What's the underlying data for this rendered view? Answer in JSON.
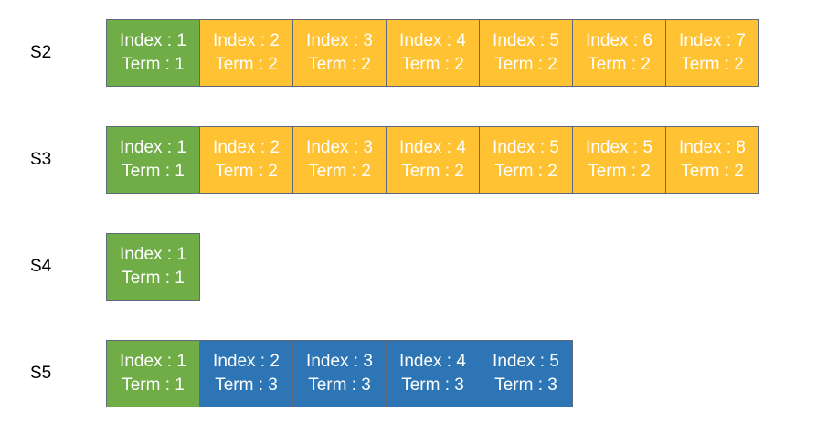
{
  "servers": [
    {
      "label": "S2",
      "entries": [
        {
          "index": "Index : 1",
          "term": "Term : 1",
          "color": "#70ad47"
        },
        {
          "index": "Index : 2",
          "term": "Term : 2",
          "color": "#ffc233"
        },
        {
          "index": "Index : 3",
          "term": "Term : 2",
          "color": "#ffc233"
        },
        {
          "index": "Index : 4",
          "term": "Term : 2",
          "color": "#ffc233"
        },
        {
          "index": "Index : 5",
          "term": "Term : 2",
          "color": "#ffc233"
        },
        {
          "index": "Index : 6",
          "term": "Term : 2",
          "color": "#ffc233"
        },
        {
          "index": "Index : 7",
          "term": "Term : 2",
          "color": "#ffc233"
        }
      ]
    },
    {
      "label": "S3",
      "entries": [
        {
          "index": "Index : 1",
          "term": "Term : 1",
          "color": "#70ad47"
        },
        {
          "index": "Index : 2",
          "term": "Term : 2",
          "color": "#ffc233"
        },
        {
          "index": "Index : 3",
          "term": "Term : 2",
          "color": "#ffc233"
        },
        {
          "index": "Index : 4",
          "term": "Term : 2",
          "color": "#ffc233"
        },
        {
          "index": "Index : 5",
          "term": "Term : 2",
          "color": "#ffc233"
        },
        {
          "index": "Index : 5",
          "term": "Term : 2",
          "color": "#ffc233"
        },
        {
          "index": "Index : 8",
          "term": "Term : 2",
          "color": "#ffc233"
        }
      ]
    },
    {
      "label": "S4",
      "entries": [
        {
          "index": "Index : 1",
          "term": "Term : 1",
          "color": "#70ad47"
        }
      ]
    },
    {
      "label": "S5",
      "entries": [
        {
          "index": "Index : 1",
          "term": "Term : 1",
          "color": "#70ad47"
        },
        {
          "index": "Index : 2",
          "term": "Term : 3",
          "color": "#2e75b6"
        },
        {
          "index": "Index : 3",
          "term": "Term : 3",
          "color": "#2e75b6"
        },
        {
          "index": "Index : 4",
          "term": "Term : 3",
          "color": "#2e75b6"
        },
        {
          "index": "Index : 5",
          "term": "Term : 3",
          "color": "#2e75b6"
        }
      ]
    }
  ]
}
